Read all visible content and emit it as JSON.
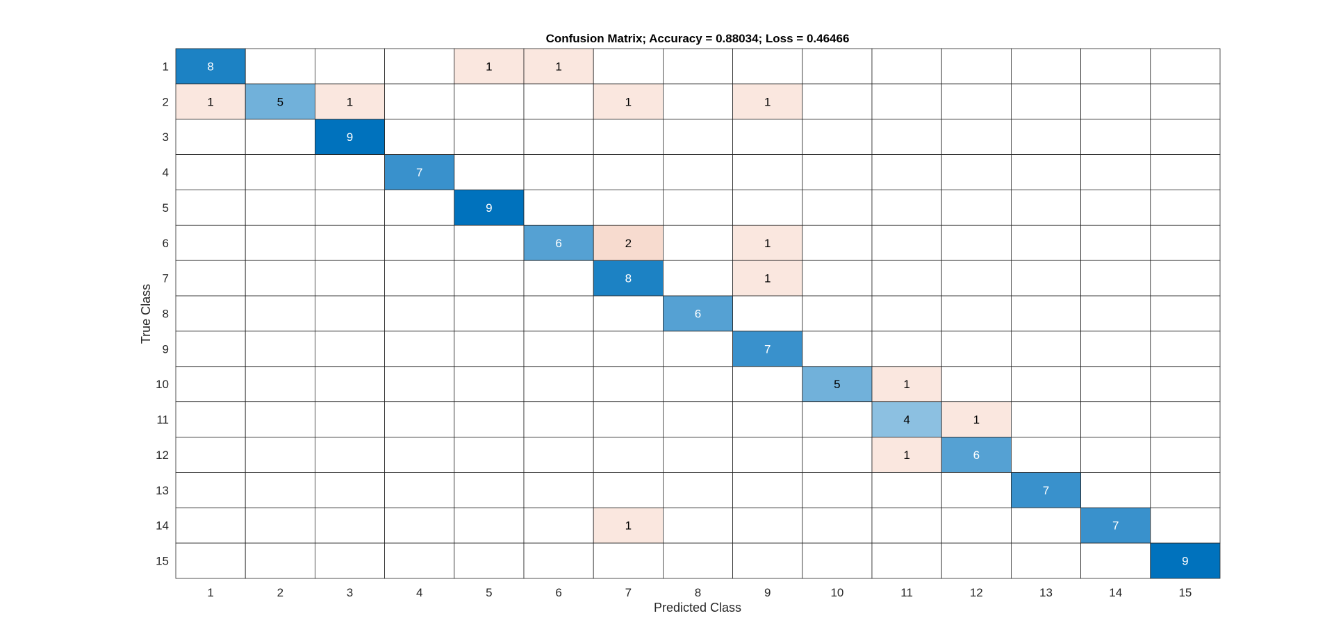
{
  "chart_data": {
    "type": "heatmap",
    "title": "Confusion Matrix; Accuracy = 0.88034; Loss = 0.46466",
    "xlabel": "Predicted Class",
    "ylabel": "True Class",
    "x_categories": [
      "1",
      "2",
      "3",
      "4",
      "5",
      "6",
      "7",
      "8",
      "9",
      "10",
      "11",
      "12",
      "13",
      "14",
      "15"
    ],
    "y_categories": [
      "1",
      "2",
      "3",
      "4",
      "5",
      "6",
      "7",
      "8",
      "9",
      "10",
      "11",
      "12",
      "13",
      "14",
      "15"
    ],
    "matrix": [
      [
        8,
        0,
        0,
        0,
        1,
        1,
        0,
        0,
        0,
        0,
        0,
        0,
        0,
        0,
        0
      ],
      [
        1,
        5,
        1,
        0,
        0,
        0,
        1,
        0,
        1,
        0,
        0,
        0,
        0,
        0,
        0
      ],
      [
        0,
        0,
        9,
        0,
        0,
        0,
        0,
        0,
        0,
        0,
        0,
        0,
        0,
        0,
        0
      ],
      [
        0,
        0,
        0,
        7,
        0,
        0,
        0,
        0,
        0,
        0,
        0,
        0,
        0,
        0,
        0
      ],
      [
        0,
        0,
        0,
        0,
        9,
        0,
        0,
        0,
        0,
        0,
        0,
        0,
        0,
        0,
        0
      ],
      [
        0,
        0,
        0,
        0,
        0,
        6,
        2,
        0,
        1,
        0,
        0,
        0,
        0,
        0,
        0
      ],
      [
        0,
        0,
        0,
        0,
        0,
        0,
        8,
        0,
        1,
        0,
        0,
        0,
        0,
        0,
        0
      ],
      [
        0,
        0,
        0,
        0,
        0,
        0,
        0,
        6,
        0,
        0,
        0,
        0,
        0,
        0,
        0
      ],
      [
        0,
        0,
        0,
        0,
        0,
        0,
        0,
        0,
        7,
        0,
        0,
        0,
        0,
        0,
        0
      ],
      [
        0,
        0,
        0,
        0,
        0,
        0,
        0,
        0,
        0,
        5,
        1,
        0,
        0,
        0,
        0
      ],
      [
        0,
        0,
        0,
        0,
        0,
        0,
        0,
        0,
        0,
        0,
        4,
        1,
        0,
        0,
        0
      ],
      [
        0,
        0,
        0,
        0,
        0,
        0,
        0,
        0,
        0,
        0,
        1,
        6,
        0,
        0,
        0
      ],
      [
        0,
        0,
        0,
        0,
        0,
        0,
        0,
        0,
        0,
        0,
        0,
        0,
        7,
        0,
        0
      ],
      [
        0,
        0,
        0,
        0,
        0,
        0,
        1,
        0,
        0,
        0,
        0,
        0,
        0,
        7,
        0
      ],
      [
        0,
        0,
        0,
        0,
        0,
        0,
        0,
        0,
        0,
        0,
        0,
        0,
        0,
        0,
        9
      ]
    ],
    "max_value": 9,
    "diagonal_color": "#0072BD",
    "offdiagonal_color": "#D95319",
    "grid_color": "#262626"
  }
}
